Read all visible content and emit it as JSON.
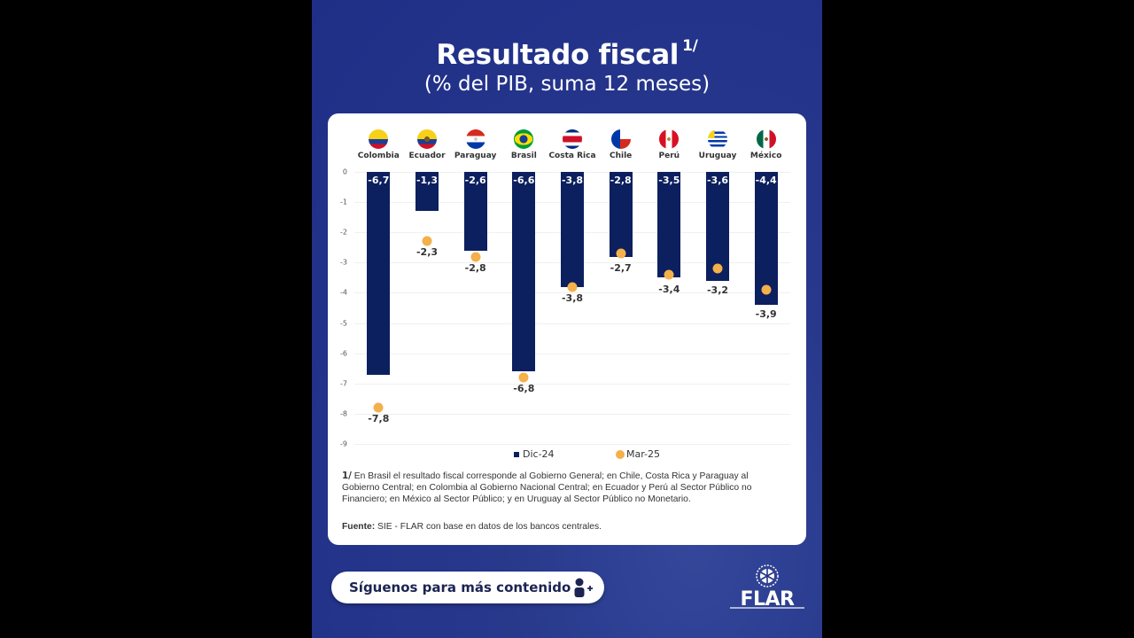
{
  "header": {
    "title": "Resultado fiscal",
    "title_note": "1/",
    "subtitle": "(% del PIB, suma 12 meses)"
  },
  "chart_data": {
    "type": "bar",
    "title": "Resultado fiscal 1/",
    "subtitle": "(% del PIB, suma 12 meses)",
    "xlabel": "",
    "ylabel": "% del PIB",
    "ylim": [
      -9,
      0
    ],
    "yticks": [
      "0",
      "-1",
      "-2",
      "-3",
      "-4",
      "-5",
      "-6",
      "-7",
      "-8",
      "-9"
    ],
    "grid": true,
    "legend_position": "bottom",
    "categories": [
      "Colombia",
      "Ecuador",
      "Paraguay",
      "Brasil",
      "Costa Rica",
      "Chile",
      "Perú",
      "Uruguay",
      "México"
    ],
    "series": [
      {
        "name": "Dic-24",
        "type": "bar",
        "color": "#0c1f5e",
        "values": [
          -6.7,
          -1.3,
          -2.6,
          -6.6,
          -3.8,
          -2.8,
          -3.5,
          -3.6,
          -4.4
        ],
        "labels": [
          "-6,7",
          "-1,3",
          "-2,6",
          "-6,6",
          "-3,8",
          "-2,8",
          "-3,5",
          "-3,6",
          "-4,4"
        ]
      },
      {
        "name": "Mar-25",
        "type": "scatter",
        "color": "#f4b04a",
        "values": [
          -7.8,
          -2.3,
          -2.8,
          -6.8,
          -3.8,
          -2.7,
          -3.4,
          -3.2,
          -3.9
        ],
        "labels": [
          "-7,8",
          "-2,3",
          "-2,8",
          "-6,8",
          "-3,8",
          "-2,7",
          "-3,4",
          "-3,2",
          "-3,9"
        ]
      }
    ]
  },
  "legend": {
    "dic": "Dic-24",
    "mar": "Mar-25"
  },
  "footnote": {
    "marker": "1/",
    "text": " En Brasil el resultado fiscal corresponde al Gobierno General; en Chile, Costa Rica y Paraguay al Gobierno Central; en Colombia al Gobierno Nacional Central; en Ecuador y Perú al Sector Público no Financiero; en México al Sector Público; y en Uruguay al Sector Público no Monetario."
  },
  "source": {
    "label": "Fuente:",
    "text": " SIE - FLAR con base en datos de los bancos centrales."
  },
  "follow_button": {
    "label": "Síguenos para más contenido",
    "icon": "add-user-icon"
  },
  "logo": {
    "text": "FLAR"
  },
  "colors": {
    "background": "#23338a",
    "bar": "#0c1f5e",
    "dot": "#f4b04a",
    "card": "#ffffff"
  }
}
